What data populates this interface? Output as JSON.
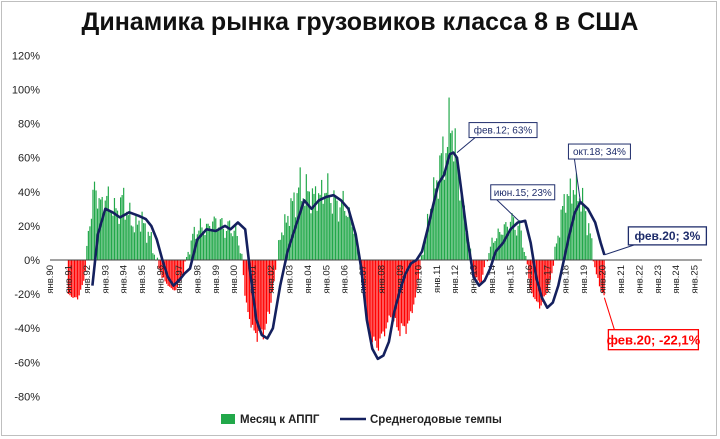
{
  "chart_data": {
    "type": "bar",
    "title": "Динамика рынка грузовиков класса 8 в США",
    "ylim": [
      -80,
      120
    ],
    "y_ticks": [
      "-80%",
      "-60%",
      "-40%",
      "-20%",
      "0%",
      "20%",
      "40%",
      "60%",
      "80%",
      "100%",
      "120%"
    ],
    "x_ticks": [
      "янв.90",
      "янв.91",
      "янв.92",
      "янв.93",
      "янв.94",
      "янв.95",
      "янв.96",
      "янв.97",
      "янв.98",
      "янв.99",
      "янв.00",
      "янв.01",
      "янв.02",
      "янв.03",
      "янв.04",
      "янв.05",
      "янв.06",
      "янв.07",
      "янв.08",
      "янв.09",
      "янв.10",
      "янв.11",
      "янв.12",
      "янв.13",
      "янв.14",
      "янв.15",
      "янв.16",
      "янв.17",
      "янв.18",
      "янв.19",
      "янв.20",
      "янв.21",
      "янв.22",
      "янв.23",
      "янв.24",
      "янв.25"
    ],
    "legend_position": "bottom",
    "series": [
      {
        "name": "Месяц к АППГ",
        "type": "bar",
        "color_positive": "#22a84a",
        "color_negative": "#ff0000",
        "keypoints": [
          [
            1991.0,
            -22
          ],
          [
            1991.5,
            -25
          ],
          [
            1991.9,
            -10
          ],
          [
            1992.1,
            20
          ],
          [
            1992.4,
            45
          ],
          [
            1992.8,
            35
          ],
          [
            1993.1,
            40
          ],
          [
            1993.5,
            30
          ],
          [
            1994.0,
            38
          ],
          [
            1994.5,
            22
          ],
          [
            1995.0,
            25
          ],
          [
            1995.5,
            12
          ],
          [
            1995.9,
            -5
          ],
          [
            1996.3,
            -15
          ],
          [
            1996.8,
            -20
          ],
          [
            1997.2,
            -10
          ],
          [
            1997.6,
            10
          ],
          [
            1998.0,
            20
          ],
          [
            1998.5,
            20
          ],
          [
            1999.0,
            25
          ],
          [
            1999.5,
            20
          ],
          [
            2000.0,
            20
          ],
          [
            2000.4,
            5
          ],
          [
            2000.6,
            -25
          ],
          [
            2001.0,
            -45
          ],
          [
            2001.5,
            -48
          ],
          [
            2001.9,
            -35
          ],
          [
            2002.2,
            -10
          ],
          [
            2002.5,
            15
          ],
          [
            2003.0,
            30
          ],
          [
            2003.5,
            45
          ],
          [
            2004.0,
            42
          ],
          [
            2004.5,
            40
          ],
          [
            2005.0,
            45
          ],
          [
            2005.5,
            35
          ],
          [
            2006.0,
            35
          ],
          [
            2006.5,
            20
          ],
          [
            2006.9,
            -5
          ],
          [
            2007.2,
            -40
          ],
          [
            2007.6,
            -55
          ],
          [
            2008.0,
            -50
          ],
          [
            2008.5,
            -35
          ],
          [
            2009.0,
            -45
          ],
          [
            2009.5,
            -40
          ],
          [
            2009.9,
            -20
          ],
          [
            2010.3,
            10
          ],
          [
            2010.7,
            35
          ],
          [
            2011.0,
            50
          ],
          [
            2011.3,
            65
          ],
          [
            2011.6,
            75
          ],
          [
            2011.8,
            90
          ],
          [
            2012.0,
            70
          ],
          [
            2012.3,
            45
          ],
          [
            2012.7,
            15
          ],
          [
            2013.0,
            -10
          ],
          [
            2013.4,
            -15
          ],
          [
            2013.8,
            5
          ],
          [
            2014.2,
            15
          ],
          [
            2014.7,
            20
          ],
          [
            2015.0,
            25
          ],
          [
            2015.5,
            20
          ],
          [
            2015.8,
            5
          ],
          [
            2016.1,
            -20
          ],
          [
            2016.6,
            -30
          ],
          [
            2017.0,
            -20
          ],
          [
            2017.3,
            -5
          ],
          [
            2017.7,
            25
          ],
          [
            2018.0,
            40
          ],
          [
            2018.5,
            45
          ],
          [
            2018.8,
            40
          ],
          [
            2019.2,
            25
          ],
          [
            2019.6,
            -5
          ],
          [
            2019.9,
            -20
          ],
          [
            2020.1,
            -22
          ]
        ]
      },
      {
        "name": "Среднегодовые темпы",
        "type": "line",
        "color": "#14205e",
        "x": [
          1992.3,
          1992.6,
          1993.0,
          1993.4,
          1993.8,
          1994.3,
          1994.8,
          1995.2,
          1995.5,
          1995.8,
          1996.1,
          1996.4,
          1996.7,
          1997.0,
          1997.3,
          1997.6,
          1998.0,
          1998.5,
          1999.0,
          1999.5,
          1999.8,
          2000.2,
          2000.6,
          2000.9,
          2001.2,
          2001.5,
          2001.8,
          2002.1,
          2002.5,
          2002.9,
          2003.2,
          2003.5,
          2003.8,
          2004.2,
          2004.6,
          2005.0,
          2005.4,
          2005.8,
          2006.2,
          2006.6,
          2006.9,
          2007.2,
          2007.5,
          2007.8,
          2008.1,
          2008.4,
          2008.7,
          2009.0,
          2009.3,
          2009.6,
          2009.9,
          2010.2,
          2010.5,
          2010.8,
          2011.1,
          2011.4,
          2011.7,
          2011.9,
          2012.1,
          2012.4,
          2012.7,
          2013.0,
          2013.3,
          2013.6,
          2013.9,
          2014.2,
          2014.6,
          2015.0,
          2015.4,
          2015.8,
          2016.1,
          2016.4,
          2016.7,
          2017.0,
          2017.3,
          2017.6,
          2017.9,
          2018.2,
          2018.5,
          2018.8,
          2019.2,
          2019.6,
          2019.9,
          2020.1
        ],
        "y": [
          -15,
          15,
          30,
          28,
          25,
          28,
          26,
          24,
          20,
          12,
          0,
          -10,
          -15,
          -12,
          -8,
          -5,
          12,
          18,
          17,
          20,
          18,
          22,
          18,
          -10,
          -35,
          -44,
          -46,
          -40,
          -15,
          5,
          15,
          25,
          35,
          30,
          35,
          37,
          38,
          35,
          30,
          15,
          -5,
          -35,
          -52,
          -58,
          -56,
          -48,
          -30,
          -18,
          -8,
          -2,
          0,
          5,
          18,
          32,
          45,
          50,
          62,
          63,
          60,
          35,
          10,
          -10,
          -15,
          -12,
          -5,
          5,
          10,
          18,
          22,
          23,
          10,
          -10,
          -22,
          -28,
          -25,
          -15,
          0,
          15,
          28,
          34,
          30,
          22,
          10,
          3
        ]
      }
    ],
    "annotations": [
      {
        "text": "фев.12; 63%",
        "x": 2012.1,
        "y": 63,
        "color": "#1f2d6b"
      },
      {
        "text": "июн.15; 23%",
        "x": 2015.45,
        "y": 23,
        "color": "#1f2d6b"
      },
      {
        "text": "окт.18; 34%",
        "x": 2018.8,
        "y": 34,
        "color": "#1f2d6b"
      },
      {
        "text": "фев.20; 3%",
        "x": 2020.1,
        "y": 3,
        "color": "#1f2d6b"
      },
      {
        "text": "фев.20; -22,1%",
        "x": 2020.1,
        "y": -22.1,
        "color": "#ff0000"
      }
    ]
  },
  "legend": {
    "bars": "Месяц к АППГ",
    "line": "Среднегодовые темпы"
  }
}
